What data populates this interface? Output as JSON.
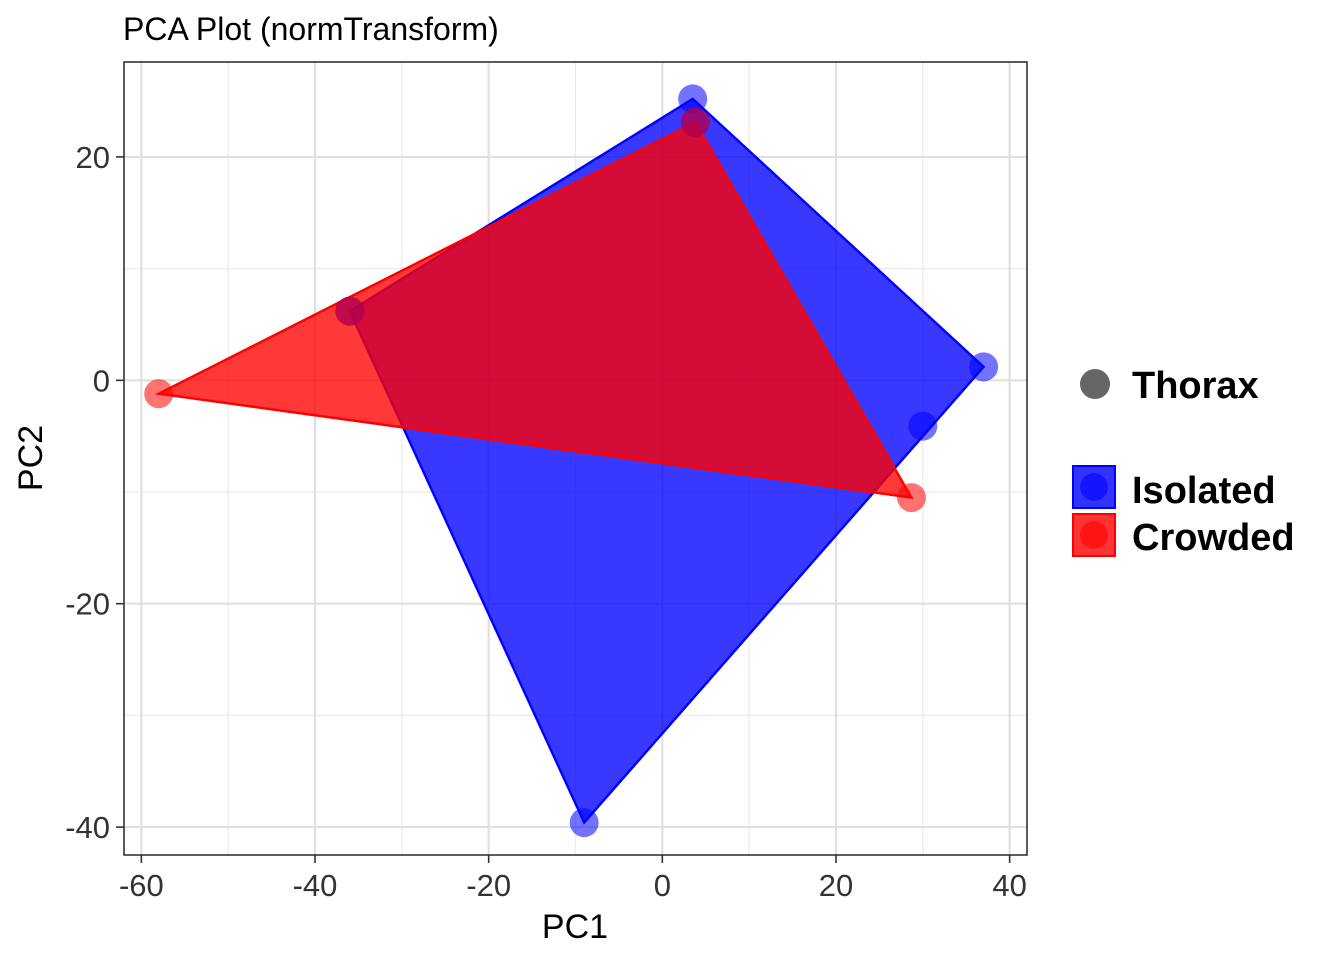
{
  "chart_data": {
    "type": "scatter",
    "title": "PCA Plot (normTransform)",
    "xlabel": "PC1",
    "ylabel": "PC2",
    "xlim": [
      -62,
      42
    ],
    "ylim": [
      -42.5,
      28.5
    ],
    "xticks": [
      -60,
      -40,
      -20,
      0,
      20,
      40
    ],
    "yticks": [
      -40,
      -20,
      0,
      20
    ],
    "xtick_labels": [
      "-60",
      "-40",
      "-20",
      "0",
      "20",
      "40"
    ],
    "ytick_labels": [
      "-40",
      "-20",
      "0",
      "20"
    ],
    "grid": true,
    "legend_position": "right",
    "shape_legend": {
      "label": "Thorax",
      "color": "#666666"
    },
    "series": [
      {
        "name": "Isolated",
        "color": "#0000ff",
        "points": [
          {
            "x": 3.5,
            "y": 25.2
          },
          {
            "x": 3.8,
            "y": 23.1
          },
          {
            "x": -36.0,
            "y": 6.2
          },
          {
            "x": 37.0,
            "y": 1.2
          },
          {
            "x": 30.0,
            "y": -4.1
          },
          {
            "x": -9.0,
            "y": -39.6
          }
        ],
        "hull": [
          {
            "x": 3.5,
            "y": 25.2
          },
          {
            "x": 37.0,
            "y": 1.2
          },
          {
            "x": -9.0,
            "y": -39.6
          },
          {
            "x": -36.0,
            "y": 6.2
          }
        ]
      },
      {
        "name": "Crowded",
        "color": "#ff0000",
        "points": [
          {
            "x": 3.8,
            "y": 23.1
          },
          {
            "x": -36.0,
            "y": 6.2
          },
          {
            "x": -58.0,
            "y": -1.2
          },
          {
            "x": 28.7,
            "y": -10.5
          }
        ],
        "hull": [
          {
            "x": 3.8,
            "y": 23.1
          },
          {
            "x": 28.7,
            "y": -10.5
          },
          {
            "x": -58.0,
            "y": -1.2
          }
        ]
      }
    ]
  }
}
